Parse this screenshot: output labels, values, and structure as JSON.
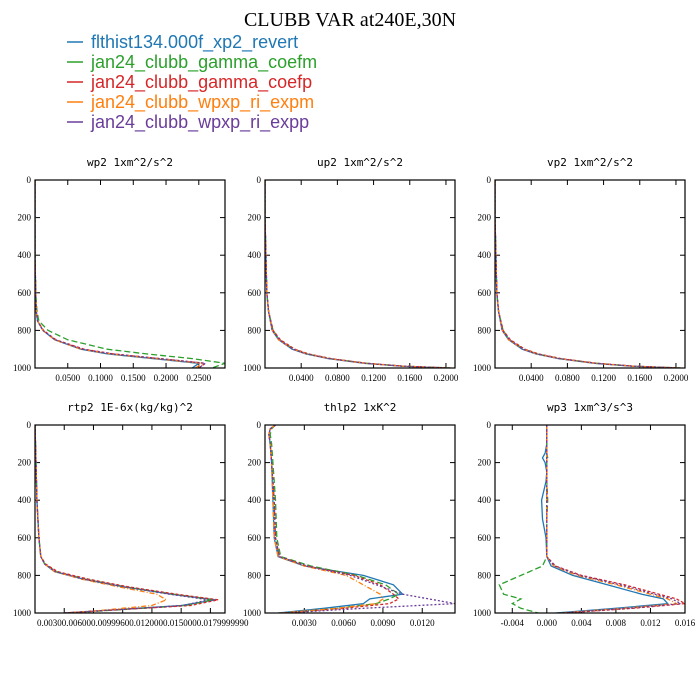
{
  "title": "CLUBB VAR at240E,30N",
  "series_colors": [
    "#1f77b4",
    "#2ca02c",
    "#d62728",
    "#ff7f0e",
    "#6a3d9a"
  ],
  "legend": [
    "flthist134.000f_xp2_revert",
    "jan24_clubb_gamma_coefm",
    "jan24_clubb_gamma_coefp",
    "jan24_clubb_wpxp_ri_expm",
    "jan24_clubb_wpxp_ri_expp"
  ],
  "chart_data": [
    {
      "type": "line",
      "title": "wp2  1xm^2/s^2",
      "ylim": [
        1000,
        0
      ],
      "xlim": [
        0,
        0.29
      ],
      "yticks": [
        "0",
        "200",
        "400",
        "600",
        "800",
        "1000"
      ],
      "xticks": [
        "0.0500",
        "0.1000",
        "0.1500",
        "0.2000",
        "0.2500"
      ],
      "y": [
        0,
        200,
        400,
        600,
        700,
        750,
        800,
        850,
        900,
        925,
        950,
        975,
        1000
      ],
      "series": [
        {
          "values": [
            0,
            0,
            0,
            0.001,
            0.002,
            0.004,
            0.012,
            0.03,
            0.07,
            0.11,
            0.18,
            0.25,
            0.24
          ]
        },
        {
          "values": [
            0,
            0,
            0,
            0.001,
            0.003,
            0.006,
            0.02,
            0.05,
            0.11,
            0.17,
            0.24,
            0.29,
            0.27
          ]
        },
        {
          "values": [
            0,
            0,
            0,
            0.001,
            0.002,
            0.004,
            0.013,
            0.032,
            0.075,
            0.12,
            0.19,
            0.26,
            0.25
          ]
        },
        {
          "values": [
            0,
            0,
            0,
            0.001,
            0.002,
            0.004,
            0.012,
            0.03,
            0.07,
            0.115,
            0.185,
            0.255,
            0.245
          ]
        },
        {
          "values": [
            0,
            0,
            0,
            0.001,
            0.002,
            0.004,
            0.012,
            0.031,
            0.072,
            0.118,
            0.19,
            0.26,
            0.25
          ]
        }
      ]
    },
    {
      "type": "line",
      "title": "up2  1xm^2/s^2",
      "ylim": [
        1000,
        0
      ],
      "xlim": [
        0,
        0.21
      ],
      "yticks": [
        "0",
        "200",
        "400",
        "600",
        "800",
        "1000"
      ],
      "xticks": [
        "0.0400",
        "0.0800",
        "0.1200",
        "0.1600",
        "0.2000"
      ],
      "y": [
        0,
        200,
        400,
        600,
        700,
        800,
        850,
        900,
        925,
        950,
        975,
        990,
        1000
      ],
      "series": [
        {
          "values": [
            0,
            0,
            0.001,
            0.002,
            0.004,
            0.008,
            0.015,
            0.03,
            0.045,
            0.07,
            0.11,
            0.15,
            0.2
          ]
        },
        {
          "values": [
            0,
            0,
            0.001,
            0.002,
            0.004,
            0.009,
            0.016,
            0.032,
            0.047,
            0.072,
            0.112,
            0.152,
            0.205
          ]
        },
        {
          "values": [
            0,
            0,
            0.001,
            0.002,
            0.004,
            0.009,
            0.017,
            0.033,
            0.048,
            0.073,
            0.113,
            0.153,
            0.205
          ]
        },
        {
          "values": [
            0,
            0,
            0.001,
            0.002,
            0.004,
            0.008,
            0.015,
            0.031,
            0.046,
            0.071,
            0.111,
            0.151,
            0.2
          ]
        },
        {
          "values": [
            0,
            0,
            0.001,
            0.002,
            0.004,
            0.008,
            0.016,
            0.031,
            0.046,
            0.071,
            0.111,
            0.151,
            0.202
          ]
        }
      ]
    },
    {
      "type": "line",
      "title": "vp2  1xm^2/s^2",
      "ylim": [
        1000,
        0
      ],
      "xlim": [
        0,
        0.21
      ],
      "yticks": [
        "0",
        "200",
        "400",
        "600",
        "800",
        "1000"
      ],
      "xticks": [
        "0.0400",
        "0.0800",
        "0.1200",
        "0.1600",
        "0.2000"
      ],
      "y": [
        0,
        200,
        400,
        600,
        700,
        800,
        850,
        900,
        925,
        950,
        975,
        990,
        1000
      ],
      "series": [
        {
          "values": [
            0,
            0,
            0.001,
            0.002,
            0.004,
            0.008,
            0.015,
            0.03,
            0.045,
            0.07,
            0.11,
            0.15,
            0.2
          ]
        },
        {
          "values": [
            0,
            0,
            0.001,
            0.002,
            0.004,
            0.009,
            0.016,
            0.032,
            0.047,
            0.072,
            0.112,
            0.152,
            0.205
          ]
        },
        {
          "values": [
            0,
            0,
            0.001,
            0.002,
            0.004,
            0.009,
            0.017,
            0.033,
            0.048,
            0.073,
            0.113,
            0.153,
            0.205
          ]
        },
        {
          "values": [
            0,
            0,
            0.001,
            0.002,
            0.004,
            0.008,
            0.015,
            0.031,
            0.046,
            0.071,
            0.111,
            0.151,
            0.2
          ]
        },
        {
          "values": [
            0,
            0,
            0.001,
            0.002,
            0.004,
            0.008,
            0.016,
            0.031,
            0.046,
            0.071,
            0.111,
            0.151,
            0.202
          ]
        }
      ]
    },
    {
      "type": "line",
      "title": "rtp2  1E-6x(kg/kg)^2",
      "ylim": [
        1000,
        0
      ],
      "xlim": [
        0,
        0.0195
      ],
      "yticks": [
        "0",
        "200",
        "400",
        "600",
        "800",
        "1000"
      ],
      "xticks": [
        "0.0030",
        "0.0060",
        "0.0090",
        "0.0120",
        "0.0150",
        "0.0180"
      ],
      "xtick_text": "0.00300.006000.00999600.0120000.0150000.0179999990",
      "y": [
        0,
        200,
        400,
        600,
        700,
        740,
        780,
        820,
        860,
        900,
        930,
        960,
        990,
        1000
      ],
      "series": [
        {
          "values": [
            0,
            0.0001,
            0.0002,
            0.0004,
            0.0006,
            0.001,
            0.002,
            0.005,
            0.009,
            0.014,
            0.0185,
            0.015,
            0.006,
            0.003
          ]
        },
        {
          "values": [
            0,
            0.0001,
            0.0002,
            0.0004,
            0.0006,
            0.001,
            0.0022,
            0.0052,
            0.0092,
            0.0142,
            0.0182,
            0.0155,
            0.0065,
            0.003
          ]
        },
        {
          "values": [
            0,
            0.0001,
            0.0002,
            0.0004,
            0.0006,
            0.0011,
            0.0023,
            0.0055,
            0.0095,
            0.0145,
            0.0188,
            0.016,
            0.006,
            0.003
          ]
        },
        {
          "values": [
            0,
            0.0001,
            0.0002,
            0.0004,
            0.0006,
            0.001,
            0.002,
            0.0048,
            0.0085,
            0.0125,
            0.0135,
            0.012,
            0.006,
            0.003
          ]
        },
        {
          "values": [
            0,
            0.0001,
            0.0002,
            0.0004,
            0.0006,
            0.001,
            0.0021,
            0.005,
            0.009,
            0.0138,
            0.0178,
            0.0152,
            0.0062,
            0.003
          ]
        }
      ]
    },
    {
      "type": "line",
      "title": "thlp2  1xK^2",
      "ylim": [
        1000,
        0
      ],
      "xlim": [
        0,
        0.0145
      ],
      "yticks": [
        "0",
        "200",
        "400",
        "600",
        "800",
        "1000"
      ],
      "xticks": [
        "0.0030",
        "0.0060",
        "0.0090",
        "0.0120"
      ],
      "y": [
        0,
        20,
        50,
        100,
        200,
        400,
        600,
        700,
        750,
        800,
        850,
        900,
        925,
        950,
        975,
        1000
      ],
      "series": [
        {
          "values": [
            0.0008,
            0.0004,
            0.0003,
            0.0004,
            0.0005,
            0.0006,
            0.0007,
            0.001,
            0.003,
            0.0075,
            0.0098,
            0.0105,
            0.008,
            0.0075,
            0.0045,
            0.001
          ]
        },
        {
          "values": [
            0.0008,
            0.0005,
            0.0004,
            0.0005,
            0.0006,
            0.0008,
            0.0009,
            0.0012,
            0.0035,
            0.007,
            0.0092,
            0.0102,
            0.0095,
            0.0085,
            0.0055,
            0.0015
          ]
        },
        {
          "values": [
            0.0008,
            0.0004,
            0.0003,
            0.0004,
            0.0005,
            0.0007,
            0.0008,
            0.0011,
            0.0032,
            0.0068,
            0.0088,
            0.0098,
            0.0102,
            0.0095,
            0.006,
            0.0015
          ]
        },
        {
          "values": [
            0.0008,
            0.0004,
            0.0003,
            0.0004,
            0.0005,
            0.0006,
            0.0007,
            0.001,
            0.003,
            0.0062,
            0.0075,
            0.0088,
            0.009,
            0.0085,
            0.0055,
            0.0012
          ]
        },
        {
          "values": [
            0.0008,
            0.0004,
            0.0003,
            0.0004,
            0.0005,
            0.0007,
            0.0008,
            0.0011,
            0.0032,
            0.0065,
            0.0085,
            0.0105,
            0.0125,
            0.0145,
            0.0075,
            0.0015
          ]
        }
      ]
    },
    {
      "type": "line",
      "title": "wp3  1xm^3/s^3",
      "ylim": [
        1000,
        0
      ],
      "xlim": [
        -0.006,
        0.016
      ],
      "yticks": [
        "0",
        "200",
        "400",
        "600",
        "800",
        "1000"
      ],
      "xticks": [
        "-0.004",
        "0.000",
        "0.004",
        "0.008",
        "0.012",
        "0.016"
      ],
      "y": [
        0,
        100,
        150,
        175,
        200,
        250,
        300,
        400,
        500,
        600,
        700,
        750,
        800,
        850,
        900,
        925,
        950,
        975,
        1000
      ],
      "series": [
        {
          "values": [
            0,
            0,
            -0.0002,
            -0.0005,
            -0.0002,
            0,
            -0.0001,
            -0.0006,
            -0.0005,
            -0.0001,
            0,
            0.0005,
            0.003,
            0.007,
            0.011,
            0.0135,
            0.014,
            0.008,
            0.001
          ]
        },
        {
          "values": [
            0,
            0,
            0,
            0.0001,
            0,
            0,
            0,
            0.0001,
            0,
            0,
            0,
            -0.0005,
            -0.003,
            -0.0055,
            -0.005,
            -0.003,
            -0.004,
            -0.003,
            -0.001
          ]
        },
        {
          "values": [
            0,
            0,
            0,
            0,
            0,
            0,
            0,
            0,
            0,
            0,
            0,
            0.001,
            0.004,
            0.009,
            0.013,
            0.015,
            0.016,
            0.01,
            0.002
          ]
        },
        {
          "values": [
            0,
            0,
            0,
            0,
            0,
            0,
            0,
            0,
            0,
            0,
            0,
            0.0008,
            0.0035,
            0.008,
            0.012,
            0.014,
            0.015,
            0.009,
            0.0015
          ]
        },
        {
          "values": [
            0,
            0,
            0,
            0,
            0,
            0,
            0,
            0,
            0,
            0,
            0,
            0.0009,
            0.0038,
            0.0085,
            0.0125,
            0.0145,
            0.0155,
            0.0095,
            0.0018
          ]
        }
      ]
    }
  ]
}
